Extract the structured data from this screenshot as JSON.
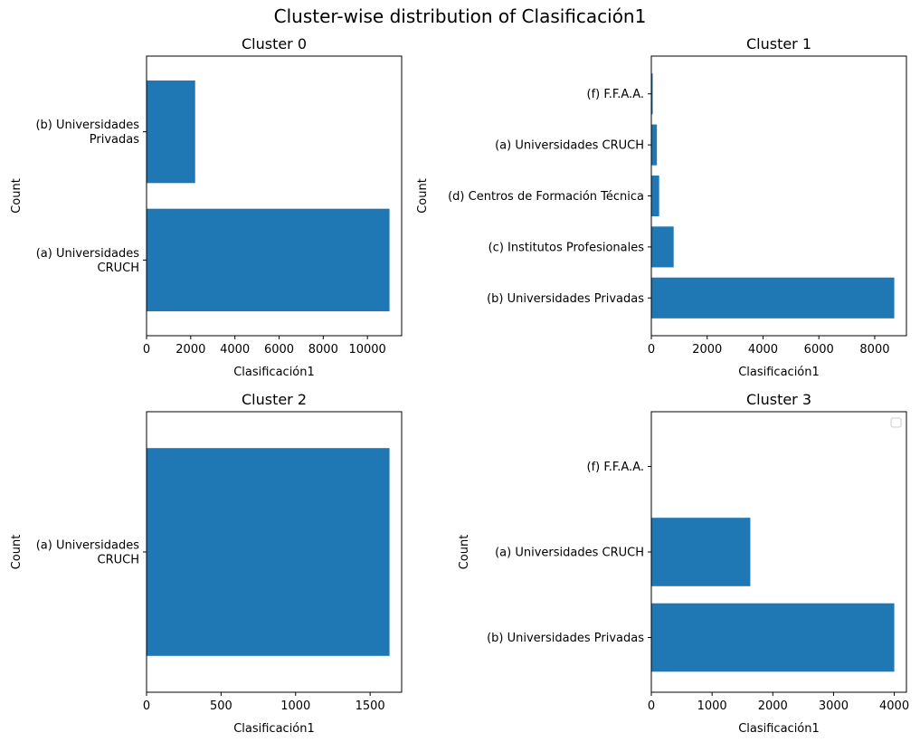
{
  "figure": {
    "suptitle": "Cluster-wise distribution of Clasificación1"
  },
  "colors": {
    "bar": "#1f77b4"
  },
  "chart_data": [
    {
      "type": "bar",
      "orientation": "horizontal",
      "title": "Cluster 0",
      "xlabel": "Clasificación1",
      "ylabel": "Count",
      "categories": [
        [
          "(a) Universidades",
          "CRUCH"
        ],
        [
          "(b) Universidades",
          "Privadas"
        ]
      ],
      "values": [
        11000,
        2200
      ],
      "xlim": [
        0,
        11550
      ],
      "xticks": [
        0,
        2000,
        4000,
        6000,
        8000,
        10000
      ],
      "legend": false
    },
    {
      "type": "bar",
      "orientation": "horizontal",
      "title": "Cluster 1",
      "xlabel": "Clasificación1",
      "ylabel": "Count",
      "categories": [
        [
          "(b) Universidades Privadas"
        ],
        [
          "(c) Institutos Profesionales"
        ],
        [
          "(d) Centros de Formación Técnica"
        ],
        [
          "(a) Universidades CRUCH"
        ],
        [
          "(f) F.F.A.A."
        ]
      ],
      "values": [
        8700,
        800,
        280,
        200,
        50
      ],
      "xlim": [
        0,
        9135
      ],
      "xticks": [
        0,
        2000,
        4000,
        6000,
        8000
      ],
      "legend": false
    },
    {
      "type": "bar",
      "orientation": "horizontal",
      "title": "Cluster 2",
      "xlabel": "Clasificación1",
      "ylabel": "Count",
      "categories": [
        [
          "(a) Universidades",
          "CRUCH"
        ]
      ],
      "values": [
        1630
      ],
      "xlim": [
        0,
        1711.5
      ],
      "xticks": [
        0,
        500,
        1000,
        1500
      ],
      "legend": false
    },
    {
      "type": "bar",
      "orientation": "horizontal",
      "title": "Cluster 3",
      "xlabel": "Clasificación1",
      "ylabel": "Count",
      "categories": [
        [
          "(b) Universidades Privadas"
        ],
        [
          "(a) Universidades CRUCH"
        ],
        [
          "(f) F.F.A.A."
        ]
      ],
      "values": [
        4000,
        1630,
        0
      ],
      "xlim": [
        0,
        4200
      ],
      "xticks": [
        0,
        1000,
        2000,
        3000,
        4000
      ],
      "legend": "upper right (empty)"
    }
  ]
}
